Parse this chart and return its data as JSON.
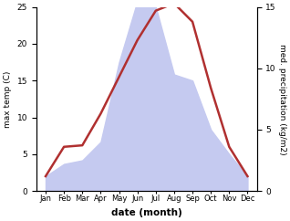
{
  "months": [
    "Jan",
    "Feb",
    "Mar",
    "Apr",
    "May",
    "Jun",
    "Jul",
    "Aug",
    "Sep",
    "Oct",
    "Nov",
    "Dec"
  ],
  "month_positions": [
    1,
    2,
    3,
    4,
    5,
    6,
    7,
    8,
    9,
    10,
    11,
    12
  ],
  "temperature": [
    2.0,
    6.0,
    6.2,
    10.5,
    15.5,
    20.5,
    24.5,
    25.5,
    23.0,
    14.0,
    6.0,
    2.0
  ],
  "precipitation": [
    1.2,
    2.2,
    2.5,
    4.0,
    10.5,
    15.5,
    15.0,
    9.5,
    9.0,
    5.0,
    3.0,
    1.2
  ],
  "temp_color": "#b03030",
  "precip_fill_color": "#c5caf0",
  "precip_edge_color": "#9099d8",
  "temp_ylim": [
    0,
    25
  ],
  "precip_ylim": [
    0,
    15
  ],
  "temp_yticks": [
    0,
    5,
    10,
    15,
    20,
    25
  ],
  "precip_yticks": [
    0,
    5,
    10,
    15
  ],
  "xlabel": "date (month)",
  "ylabel_left": "max temp (C)",
  "ylabel_right": "med. precipitation (kg/m2)",
  "bg_color": "#ffffff"
}
